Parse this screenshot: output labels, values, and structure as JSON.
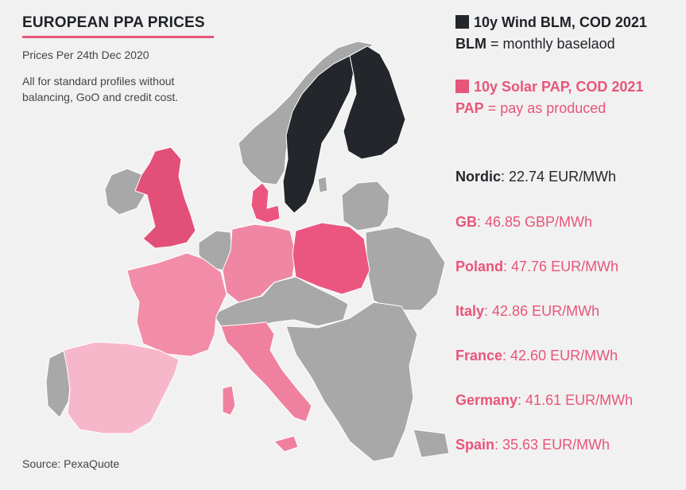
{
  "header": {
    "title": "EUROPEAN PPA PRICES",
    "subtitle": "Prices Per 24th Dec 2020",
    "note": "All for standard profiles without balancing, GoO and credit cost."
  },
  "source": "Source: PexaQuote",
  "legend": {
    "wind": {
      "label": "10y Wind BLM, COD 2021",
      "abbr": "BLM",
      "definition": " = monthly baselaod",
      "color": "#23272b"
    },
    "solar": {
      "label": "10y Solar PAP, COD 2021",
      "abbr": "PAP",
      "definition": " = pay as produced",
      "color": "#e8557a"
    }
  },
  "prices": [
    {
      "region": "Nordic",
      "value": ": 22.74 EUR/MWh",
      "color": "#23272b"
    },
    {
      "region": "GB",
      "value": ": 46.85 GBP/MWh",
      "color": "#e8557a"
    },
    {
      "region": "Poland",
      "value": ": 47.76 EUR/MWh",
      "color": "#e8557a"
    },
    {
      "region": "Italy",
      "value": ": 42.86 EUR/MWh",
      "color": "#e8557a"
    },
    {
      "region": "France",
      "value": ": 42.60 EUR/MWh",
      "color": "#e8557a"
    },
    {
      "region": "Germany",
      "value": ": 41.61 EUR/MWh",
      "color": "#e8557a"
    },
    {
      "region": "Spain",
      "value": ": 35.63 EUR/MWh",
      "color": "#e8557a"
    }
  ],
  "map_colors": {
    "other": "#a8a8a8",
    "nordic": "#23272b",
    "gb": "#e24f79",
    "poland": "#ea5680",
    "italy": "#f0809f",
    "france": "#f28da9",
    "germany": "#ef87a4",
    "spain": "#f7b7cb",
    "denmark": "#ea5680"
  }
}
